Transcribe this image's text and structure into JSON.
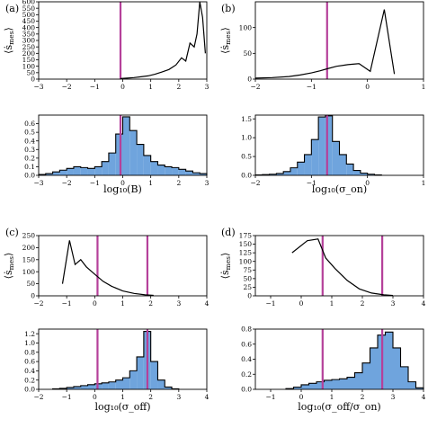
{
  "colors": {
    "hist_fill": "#6fa4dd",
    "vline": "#b5409a",
    "line": "#000000"
  },
  "chart_data": [
    {
      "panel": "(a)",
      "xlabel": "log₁₀(B)",
      "xlim": [
        -3,
        3
      ],
      "xticks": [
        -3,
        -2,
        -1,
        0,
        1,
        2,
        3
      ],
      "vlines": [
        -0.08
      ],
      "top": {
        "type": "line",
        "ylabel": "⟨ṡ_mes⟩",
        "ylim": [
          0,
          600
        ],
        "yticks": [
          0,
          50,
          100,
          150,
          200,
          250,
          300,
          350,
          400,
          450,
          500,
          550,
          600
        ],
        "x": [
          -0.08,
          0.15,
          0.4,
          0.65,
          0.9,
          1.15,
          1.4,
          1.65,
          1.9,
          2.1,
          2.25,
          2.4,
          2.55,
          2.65,
          2.75,
          2.85,
          2.95
        ],
        "y": [
          5,
          8,
          12,
          18,
          25,
          38,
          55,
          75,
          110,
          165,
          140,
          280,
          250,
          350,
          600,
          480,
          200
        ]
      },
      "bottom": {
        "type": "histogram",
        "ylim": [
          0,
          0.7
        ],
        "yticks": [
          0.0,
          0.1,
          0.2,
          0.3,
          0.4,
          0.5,
          0.6
        ],
        "bin_edges": [
          -3.0,
          -2.75,
          -2.5,
          -2.25,
          -2.0,
          -1.75,
          -1.5,
          -1.25,
          -1.0,
          -0.75,
          -0.5,
          -0.25,
          0.0,
          0.25,
          0.5,
          0.75,
          1.0,
          1.25,
          1.5,
          1.75,
          2.0,
          2.25,
          2.5,
          2.75,
          3.0
        ],
        "values": [
          0.01,
          0.02,
          0.04,
          0.06,
          0.08,
          0.1,
          0.09,
          0.08,
          0.1,
          0.16,
          0.26,
          0.48,
          0.68,
          0.52,
          0.36,
          0.23,
          0.16,
          0.12,
          0.1,
          0.09,
          0.07,
          0.05,
          0.03,
          0.02
        ]
      }
    },
    {
      "panel": "(b)",
      "xlabel": "log₁₀(σ_on)",
      "xlim": [
        -2,
        1
      ],
      "xticks": [
        -2,
        -1,
        0,
        1
      ],
      "vlines": [
        -0.72
      ],
      "top": {
        "type": "line",
        "ylabel": "⟨ṡ_mes⟩",
        "ylim": [
          0,
          150
        ],
        "yticks": [
          0,
          50,
          100
        ],
        "x": [
          -2.0,
          -1.7,
          -1.4,
          -1.2,
          -1.0,
          -0.85,
          -0.72,
          -0.55,
          -0.35,
          -0.15,
          0.05,
          0.3,
          0.48
        ],
        "y": [
          2,
          3,
          5,
          8,
          12,
          16,
          20,
          25,
          28,
          30,
          15,
          135,
          10
        ]
      },
      "bottom": {
        "type": "histogram",
        "ylim": [
          0,
          1.6
        ],
        "yticks": [
          0.0,
          0.5,
          1.0,
          1.5
        ],
        "bin_edges": [
          -2.0,
          -1.875,
          -1.75,
          -1.625,
          -1.5,
          -1.375,
          -1.25,
          -1.125,
          -1.0,
          -0.875,
          -0.75,
          -0.625,
          -0.5,
          -0.375,
          -0.25,
          -0.125,
          0.0,
          0.125,
          0.25
        ],
        "values": [
          0.01,
          0.02,
          0.03,
          0.05,
          0.1,
          0.2,
          0.35,
          0.55,
          0.95,
          1.55,
          1.58,
          0.9,
          0.55,
          0.3,
          0.13,
          0.06,
          0.03,
          0.01
        ]
      }
    },
    {
      "panel": "(c)",
      "xlabel": "log₁₀(σ_off)",
      "xlim": [
        -2,
        4
      ],
      "xticks": [
        -2,
        -1,
        0,
        1,
        2,
        3,
        4
      ],
      "vlines": [
        0.1,
        1.88
      ],
      "top": {
        "type": "line",
        "ylabel": "⟨ṡ_mes⟩",
        "ylim": [
          0,
          250
        ],
        "yticks": [
          0,
          50,
          100,
          150,
          200,
          250
        ],
        "x": [
          -1.15,
          -0.9,
          -0.7,
          -0.5,
          -0.3,
          0.0,
          0.3,
          0.6,
          1.0,
          1.4,
          1.8,
          2.1
        ],
        "y": [
          50,
          230,
          130,
          150,
          120,
          90,
          60,
          40,
          20,
          10,
          4,
          2
        ]
      },
      "bottom": {
        "type": "histogram",
        "ylim": [
          0,
          1.3
        ],
        "yticks": [
          0.0,
          0.2,
          0.4,
          0.6,
          0.8,
          1.0,
          1.2
        ],
        "bin_edges": [
          -1.5,
          -1.25,
          -1.0,
          -0.75,
          -0.5,
          -0.25,
          0.0,
          0.25,
          0.5,
          0.75,
          1.0,
          1.25,
          1.5,
          1.75,
          2.0,
          2.25,
          2.5,
          2.75,
          3.0
        ],
        "values": [
          0.01,
          0.02,
          0.04,
          0.06,
          0.08,
          0.1,
          0.12,
          0.14,
          0.16,
          0.2,
          0.25,
          0.4,
          0.7,
          1.25,
          0.6,
          0.2,
          0.05,
          0.01
        ]
      }
    },
    {
      "panel": "(d)",
      "xlabel": "log₁₀(σ_off/σ_on)",
      "xlim": [
        -1.5,
        4
      ],
      "xticks": [
        -1,
        0,
        1,
        2,
        3,
        4
      ],
      "vlines": [
        0.7,
        2.65
      ],
      "top": {
        "type": "line",
        "ylabel": "⟨ṡ_mes⟩",
        "ylim": [
          0,
          175
        ],
        "yticks": [
          0,
          25,
          50,
          75,
          100,
          125,
          150,
          175
        ],
        "x": [
          -0.3,
          0.2,
          0.55,
          0.8,
          1.1,
          1.5,
          1.9,
          2.3,
          2.7,
          3.0
        ],
        "y": [
          125,
          160,
          165,
          110,
          80,
          45,
          20,
          8,
          3,
          1
        ]
      },
      "bottom": {
        "type": "histogram",
        "ylim": [
          0,
          0.8
        ],
        "yticks": [
          0.0,
          0.2,
          0.4,
          0.6,
          0.8
        ],
        "bin_edges": [
          -0.5,
          -0.25,
          0.0,
          0.25,
          0.5,
          0.75,
          1.0,
          1.25,
          1.5,
          1.75,
          2.0,
          2.25,
          2.5,
          2.75,
          3.0,
          3.25,
          3.5,
          3.75,
          4.0
        ],
        "values": [
          0.01,
          0.03,
          0.06,
          0.08,
          0.1,
          0.12,
          0.13,
          0.14,
          0.16,
          0.22,
          0.35,
          0.55,
          0.72,
          0.76,
          0.55,
          0.3,
          0.1,
          0.02
        ]
      }
    }
  ]
}
